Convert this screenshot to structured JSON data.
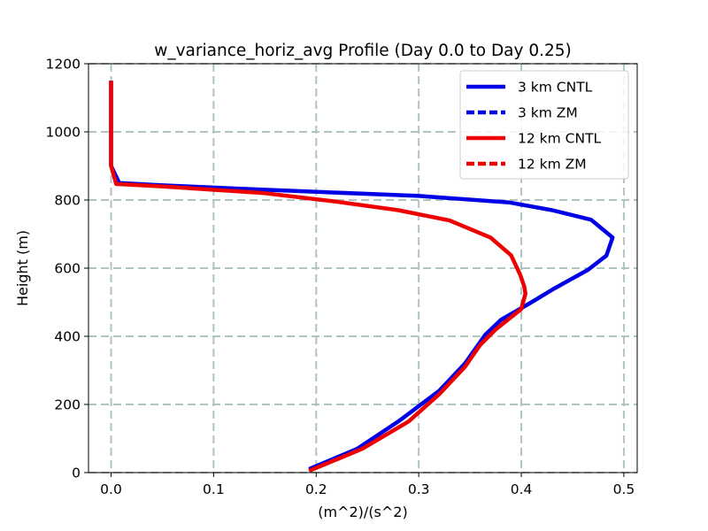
{
  "chart_data": {
    "type": "line",
    "title": "w_variance_horiz_avg Profile (Day 0.0 to Day 0.25)",
    "xlabel": "(m^2)/(s^2)",
    "ylabel": "Height (m)",
    "xlim": [
      -0.022,
      0.513
    ],
    "ylim": [
      0,
      1200
    ],
    "xticks": [
      0.0,
      0.1,
      0.2,
      0.3,
      0.4,
      0.5
    ],
    "xtick_labels": [
      "0.0",
      "0.1",
      "0.2",
      "0.3",
      "0.4",
      "0.5"
    ],
    "yticks": [
      0,
      200,
      400,
      600,
      800,
      1000,
      1200
    ],
    "ytick_labels": [
      "0",
      "200",
      "400",
      "600",
      "800",
      "1000",
      "1200"
    ],
    "grid": true,
    "legend_position": "top-right",
    "series": [
      {
        "name": "3 km CNTL",
        "color": "#0000e6",
        "style": "solid",
        "points": [
          [
            0.193,
            10
          ],
          [
            0.24,
            70
          ],
          [
            0.28,
            150
          ],
          [
            0.32,
            240
          ],
          [
            0.345,
            320
          ],
          [
            0.365,
            405
          ],
          [
            0.38,
            448
          ],
          [
            0.41,
            500
          ],
          [
            0.432,
            540
          ],
          [
            0.465,
            595
          ],
          [
            0.483,
            637
          ],
          [
            0.489,
            690
          ],
          [
            0.468,
            742
          ],
          [
            0.43,
            770
          ],
          [
            0.388,
            793
          ],
          [
            0.3,
            812
          ],
          [
            0.15,
            830
          ],
          [
            0.05,
            843
          ],
          [
            0.008,
            850
          ],
          [
            0.0,
            900
          ],
          [
            0.0,
            1000
          ],
          [
            0.0,
            1150
          ]
        ]
      },
      {
        "name": "3 km ZM",
        "color": "#0000e6",
        "style": "dashed",
        "points": []
      },
      {
        "name": "12 km CNTL",
        "color": "#ee0000",
        "style": "solid",
        "points": [
          [
            0.193,
            5
          ],
          [
            0.245,
            70
          ],
          [
            0.29,
            150
          ],
          [
            0.32,
            230
          ],
          [
            0.345,
            310
          ],
          [
            0.36,
            375
          ],
          [
            0.375,
            420
          ],
          [
            0.4,
            480
          ],
          [
            0.404,
            525
          ],
          [
            0.403,
            545
          ],
          [
            0.399,
            580
          ],
          [
            0.39,
            638
          ],
          [
            0.37,
            690
          ],
          [
            0.33,
            740
          ],
          [
            0.28,
            770
          ],
          [
            0.22,
            795
          ],
          [
            0.15,
            820
          ],
          [
            0.05,
            840
          ],
          [
            0.005,
            847
          ],
          [
            0.0,
            900
          ],
          [
            0.0,
            1000
          ],
          [
            0.0,
            1150
          ]
        ]
      },
      {
        "name": "12 km ZM",
        "color": "#ee0000",
        "style": "dashed",
        "points": []
      }
    ]
  }
}
